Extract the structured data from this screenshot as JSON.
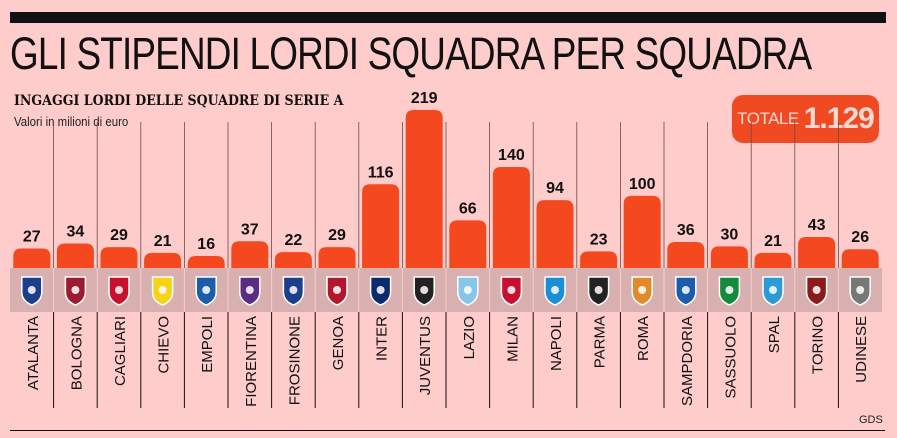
{
  "header": {
    "title": "GLI STIPENDI LORDI SQUADRA PER SQUADRA",
    "subtitle": "INGAGGI LORDI DELLE SQUADRE DI SERIE A",
    "unit_note": "Valori in milioni di euro"
  },
  "total": {
    "label": "TOTALE",
    "value": "1.129"
  },
  "source": "GDS",
  "colors": {
    "bar": "#f4491f",
    "background": "#fdcccb",
    "logo_strip": "#d9b0b0",
    "total_box": "#f04a22"
  },
  "chart_data": {
    "type": "bar",
    "title": "INGAGGI LORDI DELLE SQUADRE DI SERIE A",
    "subtitle": "Valori in milioni di euro",
    "xlabel": "",
    "ylabel": "",
    "ylim": [
      0,
      219
    ],
    "grid": false,
    "categories": [
      "ATALANTA",
      "BOLOGNA",
      "CAGLIARI",
      "CHIEVO",
      "EMPOLI",
      "FIORENTINA",
      "FROSINONE",
      "GENOA",
      "INTER",
      "JUVENTUS",
      "LAZIO",
      "MILAN",
      "NAPOLI",
      "PARMA",
      "ROMA",
      "SAMPDORIA",
      "SASSUOLO",
      "SPAL",
      "TORINO",
      "UDINESE"
    ],
    "values": [
      27,
      34,
      29,
      21,
      16,
      37,
      22,
      29,
      116,
      219,
      66,
      140,
      94,
      23,
      100,
      36,
      30,
      21,
      43,
      26
    ],
    "logo_icons": [
      "atalanta-crest-icon",
      "bologna-crest-icon",
      "cagliari-crest-icon",
      "chievo-crest-icon",
      "empoli-crest-icon",
      "fiorentina-crest-icon",
      "frosinone-crest-icon",
      "genoa-crest-icon",
      "inter-crest-icon",
      "juventus-crest-icon",
      "lazio-crest-icon",
      "milan-crest-icon",
      "napoli-crest-icon",
      "parma-crest-icon",
      "roma-crest-icon",
      "sampdoria-crest-icon",
      "sassuolo-crest-icon",
      "spal-crest-icon",
      "torino-crest-icon",
      "udinese-crest-icon"
    ],
    "logo_colors": [
      "#1b3f8c",
      "#9b1b30",
      "#c8102e",
      "#f6d315",
      "#1b5cab",
      "#5a2d82",
      "#1b3f8c",
      "#b2182b",
      "#0a2c6e",
      "#222222",
      "#87c6ea",
      "#c8102e",
      "#1a8ed6",
      "#222222",
      "#e08a2a",
      "#1b5cab",
      "#138a3c",
      "#2c9ad6",
      "#8b1a1a",
      "#777777"
    ]
  }
}
